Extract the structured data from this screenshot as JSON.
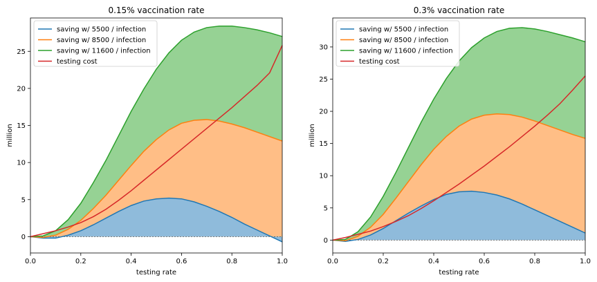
{
  "colors": {
    "s5500": "#1f77b4",
    "s8500": "#ff7f0e",
    "s11600": "#2ca02c",
    "testing": "#d62728",
    "fill_blue": "#8fbbdb",
    "fill_orange": "#ffbe86",
    "fill_green": "#96d294"
  },
  "chart_data": [
    {
      "type": "line",
      "title": "0.15% vaccination rate",
      "xlabel": "testing rate",
      "ylabel": "million",
      "xlim": [
        0,
        1
      ],
      "ylim": [
        -2.2,
        29.5
      ],
      "xticks": [
        "0.0",
        "0.2",
        "0.4",
        "0.6",
        "0.8",
        "1.0"
      ],
      "yticks": [
        "0",
        "5",
        "10",
        "15",
        "20",
        "25"
      ],
      "legend_position": "top-left",
      "grid": false,
      "x": [
        0,
        0.05,
        0.1,
        0.15,
        0.2,
        0.25,
        0.3,
        0.35,
        0.4,
        0.45,
        0.5,
        0.55,
        0.6,
        0.65,
        0.7,
        0.75,
        0.8,
        0.85,
        0.9,
        0.95,
        1.0
      ],
      "series": [
        {
          "name": "saving w/ 5500 / infection",
          "values": [
            0,
            -0.2,
            -0.2,
            0.2,
            0.8,
            1.6,
            2.5,
            3.4,
            4.2,
            4.8,
            5.1,
            5.2,
            5.1,
            4.7,
            4.1,
            3.4,
            2.6,
            1.7,
            0.9,
            0.1,
            -0.7
          ]
        },
        {
          "name": "saving w/ 8500 / infection",
          "values": [
            0,
            -0.1,
            0.2,
            1.0,
            2.2,
            3.8,
            5.6,
            7.6,
            9.6,
            11.5,
            13.1,
            14.4,
            15.3,
            15.7,
            15.8,
            15.6,
            15.2,
            14.7,
            14.1,
            13.5,
            12.9
          ]
        },
        {
          "name": "saving w/ 11600 / infection",
          "values": [
            0,
            0.1,
            0.8,
            2.3,
            4.5,
            7.3,
            10.3,
            13.6,
            16.9,
            19.9,
            22.6,
            24.8,
            26.5,
            27.6,
            28.2,
            28.4,
            28.4,
            28.2,
            27.9,
            27.5,
            27.0
          ]
        },
        {
          "name": "testing cost",
          "values": [
            0,
            0.4,
            0.8,
            1.3,
            1.9,
            2.7,
            3.7,
            4.9,
            6.2,
            7.6,
            9.0,
            10.4,
            11.8,
            13.2,
            14.6,
            16.0,
            17.4,
            18.9,
            20.4,
            22.1,
            25.8
          ]
        }
      ]
    },
    {
      "type": "line",
      "title": "0.3% vaccination rate",
      "xlabel": "testing rate",
      "ylabel": "million",
      "xlim": [
        0,
        1
      ],
      "ylim": [
        -2.0,
        34.5
      ],
      "xticks": [
        "0.0",
        "0.2",
        "0.4",
        "0.6",
        "0.8",
        "1.0"
      ],
      "yticks": [
        "0",
        "5",
        "10",
        "15",
        "20",
        "25",
        "30"
      ],
      "legend_position": "top-left",
      "grid": false,
      "x": [
        0,
        0.05,
        0.1,
        0.15,
        0.2,
        0.25,
        0.3,
        0.35,
        0.4,
        0.45,
        0.5,
        0.55,
        0.6,
        0.65,
        0.7,
        0.75,
        0.8,
        0.85,
        0.9,
        0.95,
        1.0
      ],
      "series": [
        {
          "name": "saving w/ 5500 / infection",
          "values": [
            0,
            -0.2,
            0.1,
            0.8,
            1.8,
            3.0,
            4.2,
            5.3,
            6.3,
            7.1,
            7.5,
            7.6,
            7.4,
            7.0,
            6.4,
            5.6,
            4.7,
            3.8,
            2.9,
            2.0,
            1.1
          ]
        },
        {
          "name": "saving w/ 8500 / infection",
          "values": [
            0,
            -0.1,
            0.6,
            2.0,
            4.0,
            6.5,
            9.1,
            11.7,
            14.1,
            16.1,
            17.7,
            18.8,
            19.4,
            19.6,
            19.5,
            19.1,
            18.5,
            17.8,
            17.1,
            16.4,
            15.8
          ]
        },
        {
          "name": "saving w/ 11600 / infection",
          "values": [
            0,
            0.1,
            1.3,
            3.6,
            6.8,
            10.5,
            14.4,
            18.3,
            21.9,
            25.1,
            27.8,
            29.9,
            31.4,
            32.4,
            32.9,
            33.0,
            32.8,
            32.4,
            31.9,
            31.4,
            30.8
          ]
        },
        {
          "name": "testing cost",
          "values": [
            0,
            0.4,
            0.9,
            1.4,
            2.1,
            2.9,
            3.8,
            4.9,
            6.1,
            7.4,
            8.7,
            10.1,
            11.5,
            13.0,
            14.5,
            16.1,
            17.7,
            19.4,
            21.2,
            23.3,
            25.5
          ]
        }
      ]
    }
  ]
}
